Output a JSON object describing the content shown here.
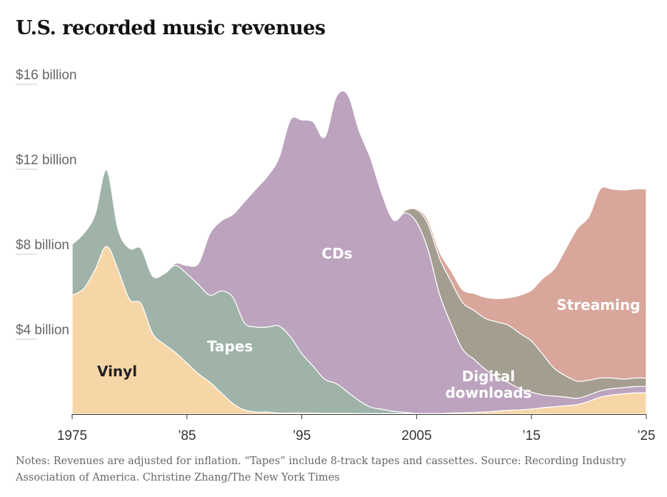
{
  "title": "U.S. recorded music revenues",
  "notes": "Notes: Revenues are adjusted for inflation. “Tapes” include 8-track tapes and cassettes.  Source: Recording Industry Association of America.  Christine Zhang/The New York Times",
  "chart_data": {
    "type": "area",
    "stacked": true,
    "title": "U.S. recorded music revenues",
    "unit": "billion dollars (inflation-adjusted)",
    "xlim": [
      1975,
      2025
    ],
    "ylim": [
      0,
      16
    ],
    "y_ticks": [
      {
        "value": 4,
        "label": "$4 billion"
      },
      {
        "value": 8,
        "label": "$8 billion"
      },
      {
        "value": 12,
        "label": "$12 billion"
      },
      {
        "value": 16,
        "label": "$16 billion"
      }
    ],
    "x_ticks": [
      {
        "value": 1975,
        "label": "1975"
      },
      {
        "value": 1985,
        "label": "’85"
      },
      {
        "value": 1995,
        "label": "’95"
      },
      {
        "value": 2005,
        "label": "2005"
      },
      {
        "value": 2015,
        "label": "’15"
      },
      {
        "value": 2025,
        "label": "’25"
      }
    ],
    "years": [
      1975,
      1976,
      1977,
      1978,
      1979,
      1980,
      1981,
      1982,
      1983,
      1984,
      1985,
      1986,
      1987,
      1988,
      1989,
      1990,
      1991,
      1992,
      1993,
      1994,
      1995,
      1996,
      1997,
      1998,
      1999,
      2000,
      2001,
      2002,
      2003,
      2004,
      2005,
      2006,
      2007,
      2008,
      2009,
      2010,
      2011,
      2012,
      2013,
      2014,
      2015,
      2016,
      2017,
      2018,
      2019,
      2020,
      2021,
      2022,
      2023,
      2024,
      2025
    ],
    "series": [
      {
        "name": "Vinyl",
        "label": "Vinyl",
        "color": "#f6d6a7",
        "label_color": "#222222",
        "values": [
          5.6,
          5.9,
          6.8,
          7.9,
          6.8,
          5.4,
          5.2,
          3.8,
          3.3,
          2.9,
          2.4,
          1.9,
          1.5,
          1.0,
          0.5,
          0.2,
          0.1,
          0.1,
          0.05,
          0.05,
          0.05,
          0.05,
          0.04,
          0.04,
          0.04,
          0.03,
          0.03,
          0.03,
          0.03,
          0.03,
          0.03,
          0.03,
          0.03,
          0.05,
          0.06,
          0.08,
          0.1,
          0.14,
          0.18,
          0.2,
          0.24,
          0.3,
          0.35,
          0.4,
          0.45,
          0.6,
          0.8,
          0.9,
          0.95,
          1.0,
          1.0
        ]
      },
      {
        "name": "Tapes",
        "label": "Tapes",
        "color": "#9fb3a9",
        "label_color": "#ffffff",
        "values": [
          2.4,
          2.6,
          2.6,
          3.6,
          1.9,
          2.4,
          2.6,
          2.7,
          3.3,
          4.1,
          4.2,
          4.2,
          4.1,
          4.8,
          5.0,
          4.1,
          4.0,
          4.0,
          4.1,
          3.6,
          2.8,
          2.2,
          1.6,
          1.4,
          1.0,
          0.6,
          0.3,
          0.2,
          0.1,
          0.05,
          0,
          0,
          0,
          0,
          0,
          0,
          0,
          0,
          0,
          0,
          0,
          0,
          0,
          0,
          0,
          0,
          0,
          0,
          0,
          0,
          0
        ]
      },
      {
        "name": "CDs",
        "label": "CDs",
        "color": "#bca3be",
        "label_color": "#ffffff",
        "values": [
          0,
          0,
          0,
          0,
          0,
          0,
          0,
          0,
          0,
          0.1,
          0.4,
          1.0,
          2.9,
          3.3,
          3.9,
          5.7,
          6.5,
          7.1,
          7.9,
          10.2,
          11.0,
          11.5,
          11.4,
          13.5,
          14.0,
          12.7,
          11.7,
          10.1,
          9.0,
          9.4,
          9.0,
          7.7,
          5.6,
          4.2,
          3.0,
          2.5,
          2.0,
          1.6,
          1.3,
          1.0,
          0.8,
          0.6,
          0.5,
          0.4,
          0.3,
          0.3,
          0.3,
          0.3,
          0.3,
          0.3,
          0.3
        ]
      },
      {
        "name": "Digital downloads",
        "label": [
          "Digital",
          "downloads"
        ],
        "color": "#a39e90",
        "label_color": "#ffffff",
        "values": [
          0,
          0,
          0,
          0,
          0,
          0,
          0,
          0,
          0,
          0,
          0,
          0,
          0,
          0,
          0,
          0,
          0,
          0,
          0,
          0,
          0,
          0,
          0,
          0,
          0,
          0,
          0,
          0,
          0.01,
          0.1,
          0.6,
          1.2,
          1.7,
          2.0,
          2.2,
          2.3,
          2.4,
          2.6,
          2.7,
          2.6,
          2.4,
          1.9,
          1.3,
          1.0,
          0.8,
          0.7,
          0.6,
          0.5,
          0.4,
          0.4,
          0.4
        ]
      },
      {
        "name": "Streaming",
        "label": "Streaming",
        "color": "#d8a69b",
        "label_color": "#ffffff",
        "values": [
          0,
          0,
          0,
          0,
          0,
          0,
          0,
          0,
          0,
          0,
          0,
          0,
          0,
          0,
          0,
          0,
          0,
          0,
          0,
          0,
          0,
          0,
          0,
          0,
          0,
          0,
          0,
          0,
          0,
          0.02,
          0.05,
          0.2,
          0.3,
          0.5,
          0.6,
          0.8,
          1.0,
          1.1,
          1.3,
          1.8,
          2.4,
          3.6,
          4.7,
          6.0,
          7.2,
          7.7,
          8.9,
          8.9,
          8.9,
          8.9,
          8.9
        ]
      }
    ]
  }
}
